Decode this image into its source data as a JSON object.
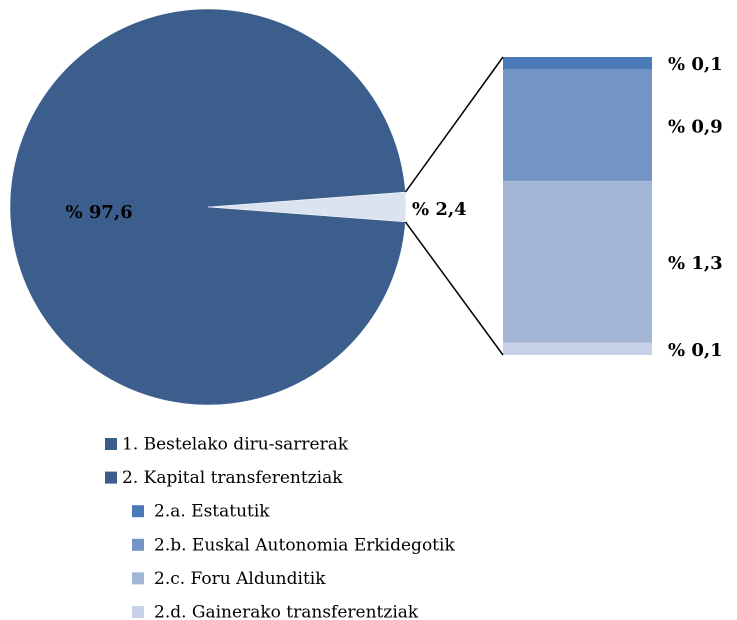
{
  "chart_data": {
    "type": "bar-of-pie",
    "pie": {
      "categories": [
        "1. Bestelako diru-sarrerak",
        "2. Kapital transferentziak"
      ],
      "values": [
        97.6,
        2.4
      ],
      "value_labels": [
        "% 97,6",
        "% 2,4"
      ],
      "colors": [
        "#3b5e8c",
        "#dce3f0"
      ]
    },
    "bar": {
      "categories": [
        "2.a. Estatutik",
        "2.b. Euskal Autonomia Erkidegotik",
        "2.c. Foru Aldunditik",
        "2.d. Gainerako transferentziak"
      ],
      "values": [
        0.1,
        0.9,
        1.3,
        0.1
      ],
      "value_labels": [
        "% 0,1",
        "% 0,9",
        "% 1,3",
        "% 0,1"
      ],
      "colors": [
        "#4a7ab8",
        "#7396c7",
        "#a3b5d5",
        "#c7d1e7"
      ]
    },
    "legend_colors": [
      "#3b5e8c",
      "#3b5e8c",
      "#4a7ab8",
      "#7396c7",
      "#a3b5d5",
      "#c7d1e7"
    ]
  }
}
